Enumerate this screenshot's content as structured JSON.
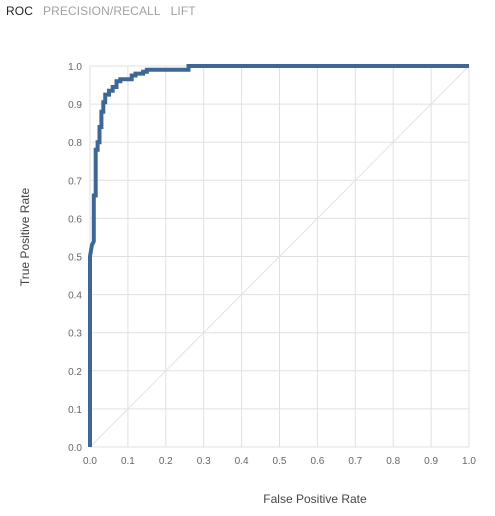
{
  "tabs": [
    {
      "label": "ROC",
      "active": true
    },
    {
      "label": "PRECISION/RECALL",
      "active": false
    },
    {
      "label": "LIFT",
      "active": false
    }
  ],
  "chart_data": {
    "type": "line",
    "xlabel": "False Positive Rate",
    "ylabel": "True Positive Rate",
    "xlim": [
      0,
      1
    ],
    "ylim": [
      0,
      1
    ],
    "xticks": [
      "0.0",
      "0.1",
      "0.2",
      "0.3",
      "0.4",
      "0.5",
      "0.6",
      "0.7",
      "0.8",
      "0.9",
      "1.0"
    ],
    "yticks": [
      "0.0",
      "0.1",
      "0.2",
      "0.3",
      "0.4",
      "0.5",
      "0.6",
      "0.7",
      "0.8",
      "0.9",
      "1.0"
    ],
    "grid": true,
    "colors": {
      "roc": "#3f6796",
      "diagonal": "#e3e3e3",
      "grid": "#e0e0e0"
    },
    "series": [
      {
        "role": "roc",
        "x": [
          0,
          0,
          0.005,
          0.01,
          0.01,
          0.015,
          0.015,
          0.02,
          0.02,
          0.025,
          0.025,
          0.03,
          0.03,
          0.035,
          0.035,
          0.04,
          0.04,
          0.05,
          0.05,
          0.06,
          0.06,
          0.07,
          0.07,
          0.08,
          0.08,
          0.09,
          0.11,
          0.11,
          0.12,
          0.12,
          0.14,
          0.14,
          0.15,
          0.15,
          0.26,
          0.26,
          1.0
        ],
        "y": [
          0,
          0.5,
          0.53,
          0.54,
          0.66,
          0.66,
          0.78,
          0.78,
          0.8,
          0.8,
          0.84,
          0.84,
          0.88,
          0.88,
          0.905,
          0.905,
          0.925,
          0.925,
          0.935,
          0.935,
          0.945,
          0.945,
          0.96,
          0.96,
          0.965,
          0.965,
          0.965,
          0.975,
          0.975,
          0.98,
          0.98,
          0.985,
          0.985,
          0.99,
          0.99,
          1.0,
          1.0
        ]
      },
      {
        "role": "diagonal",
        "x": [
          0,
          1
        ],
        "y": [
          0,
          1
        ]
      }
    ]
  }
}
